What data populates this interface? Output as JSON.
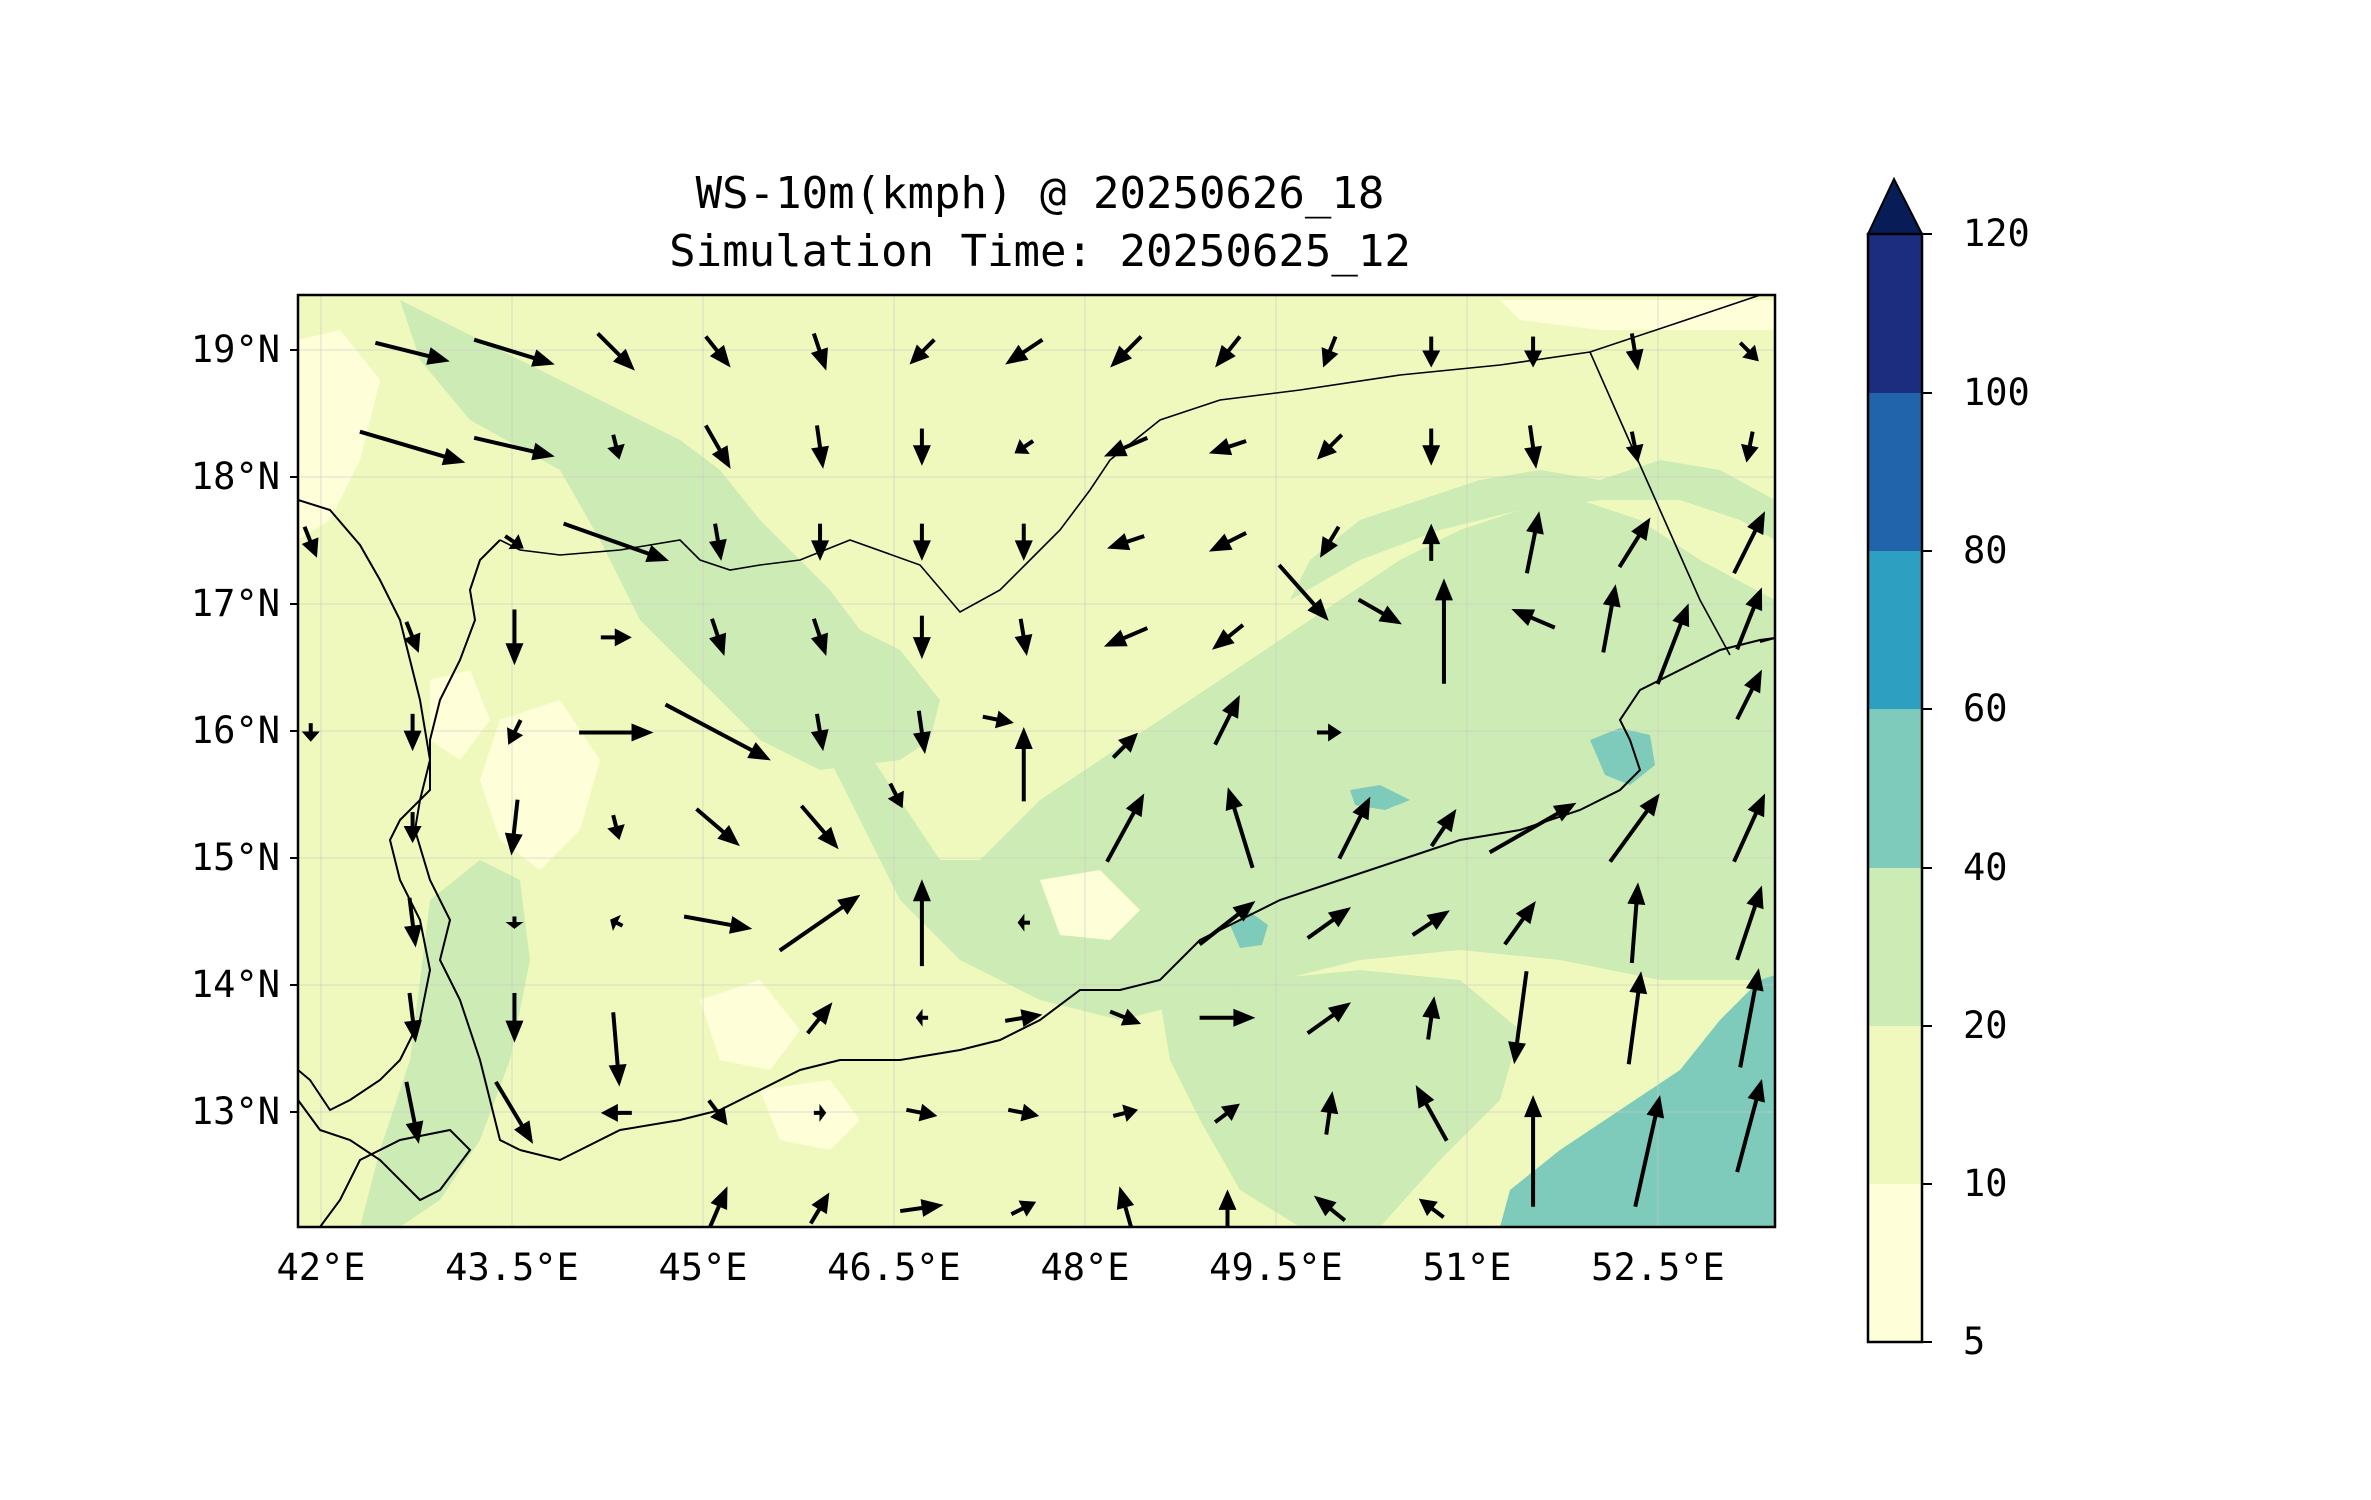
{
  "title": {
    "line1": "WS-10m(kmph) @ 20250626_18",
    "line2": "Simulation Time: 20250625_12"
  },
  "axes": {
    "lon_ticks": [
      "42°E",
      "43.5°E",
      "45°E",
      "46.5°E",
      "48°E",
      "49.5°E",
      "51°E",
      "52.5°E"
    ],
    "lat_ticks": [
      "19°N",
      "18°N",
      "17°N",
      "16°N",
      "15°N",
      "14°N",
      "13°N"
    ],
    "lon_range": [
      41.9,
      53.5
    ],
    "lat_range": [
      12.1,
      19.45
    ],
    "grid": true
  },
  "colorbar": {
    "labels": [
      "5",
      "10",
      "20",
      "40",
      "60",
      "80",
      "100",
      "120"
    ],
    "colors": [
      "#feffd9",
      "#f0f9bd",
      "#cdebb4",
      "#7ecbbb",
      "#2da0c2",
      "#2164ab",
      "#1c2d80",
      "#081d58"
    ],
    "extend": "max"
  },
  "chart_data": {
    "type": "map",
    "variable": "WS-10m(kmph)",
    "levels": [
      5,
      10,
      20,
      40,
      60,
      80,
      100,
      120
    ],
    "wind_vectors": [
      {
        "lon": 42.8,
        "lat": 19.0,
        "u": 24,
        "v": -6
      },
      {
        "lon": 43.6,
        "lat": 19.0,
        "u": 26,
        "v": -8
      },
      {
        "lon": 44.4,
        "lat": 19.0,
        "u": 12,
        "v": -12
      },
      {
        "lon": 45.2,
        "lat": 19.0,
        "u": 8,
        "v": -10
      },
      {
        "lon": 46.0,
        "lat": 19.0,
        "u": 4,
        "v": -12
      },
      {
        "lon": 46.8,
        "lat": 19.0,
        "u": -8,
        "v": -8
      },
      {
        "lon": 47.6,
        "lat": 19.0,
        "u": -12,
        "v": -8
      },
      {
        "lon": 48.4,
        "lat": 19.0,
        "u": -10,
        "v": -10
      },
      {
        "lon": 49.2,
        "lat": 19.0,
        "u": -8,
        "v": -10
      },
      {
        "lon": 50.0,
        "lat": 19.0,
        "u": -4,
        "v": -10
      },
      {
        "lon": 50.8,
        "lat": 19.0,
        "u": 0,
        "v": -10
      },
      {
        "lon": 51.6,
        "lat": 19.0,
        "u": 0,
        "v": -10
      },
      {
        "lon": 52.4,
        "lat": 19.0,
        "u": 2,
        "v": -12
      },
      {
        "lon": 53.3,
        "lat": 19.0,
        "u": 6,
        "v": -6
      },
      {
        "lon": 42.8,
        "lat": 18.25,
        "u": 34,
        "v": -10
      },
      {
        "lon": 43.6,
        "lat": 18.25,
        "u": 26,
        "v": -6
      },
      {
        "lon": 44.4,
        "lat": 18.25,
        "u": 2,
        "v": -8
      },
      {
        "lon": 45.2,
        "lat": 18.25,
        "u": 8,
        "v": -14
      },
      {
        "lon": 46.0,
        "lat": 18.25,
        "u": 2,
        "v": -14
      },
      {
        "lon": 46.8,
        "lat": 18.25,
        "u": 0,
        "v": -12
      },
      {
        "lon": 47.6,
        "lat": 18.25,
        "u": -6,
        "v": -4
      },
      {
        "lon": 48.4,
        "lat": 18.25,
        "u": -14,
        "v": -6
      },
      {
        "lon": 49.2,
        "lat": 18.25,
        "u": -12,
        "v": -4
      },
      {
        "lon": 50.0,
        "lat": 18.25,
        "u": -8,
        "v": -8
      },
      {
        "lon": 50.8,
        "lat": 18.25,
        "u": 0,
        "v": -12
      },
      {
        "lon": 51.6,
        "lat": 18.25,
        "u": 2,
        "v": -14
      },
      {
        "lon": 52.4,
        "lat": 18.25,
        "u": 2,
        "v": -10
      },
      {
        "lon": 53.3,
        "lat": 18.25,
        "u": -2,
        "v": -10
      },
      {
        "lon": 43.6,
        "lat": 17.5,
        "u": 6,
        "v": -4
      },
      {
        "lon": 44.4,
        "lat": 17.5,
        "u": 34,
        "v": -12
      },
      {
        "lon": 45.2,
        "lat": 17.5,
        "u": 2,
        "v": -12
      },
      {
        "lon": 46.0,
        "lat": 17.5,
        "u": 0,
        "v": -12
      },
      {
        "lon": 46.8,
        "lat": 17.5,
        "u": 0,
        "v": -12
      },
      {
        "lon": 47.6,
        "lat": 17.5,
        "u": 0,
        "v": -12
      },
      {
        "lon": 48.4,
        "lat": 17.5,
        "u": -12,
        "v": -4
      },
      {
        "lon": 49.2,
        "lat": 17.5,
        "u": -12,
        "v": -6
      },
      {
        "lon": 50.0,
        "lat": 17.5,
        "u": -6,
        "v": -10
      },
      {
        "lon": 50.8,
        "lat": 17.5,
        "u": 0,
        "v": 12
      },
      {
        "lon": 51.6,
        "lat": 17.5,
        "u": 4,
        "v": 20
      },
      {
        "lon": 52.4,
        "lat": 17.5,
        "u": 10,
        "v": 16
      },
      {
        "lon": 53.3,
        "lat": 17.5,
        "u": 10,
        "v": 20
      },
      {
        "lon": 42.0,
        "lat": 17.5,
        "u": 4,
        "v": -10
      },
      {
        "lon": 43.6,
        "lat": 16.75,
        "u": 0,
        "v": -18
      },
      {
        "lon": 44.4,
        "lat": 16.75,
        "u": 10,
        "v": 0
      },
      {
        "lon": 45.2,
        "lat": 16.75,
        "u": 4,
        "v": -12
      },
      {
        "lon": 46.0,
        "lat": 16.75,
        "u": 4,
        "v": -12
      },
      {
        "lon": 46.8,
        "lat": 16.75,
        "u": 0,
        "v": -14
      },
      {
        "lon": 47.6,
        "lat": 16.75,
        "u": 2,
        "v": -12
      },
      {
        "lon": 48.4,
        "lat": 16.75,
        "u": -14,
        "v": -6
      },
      {
        "lon": 49.2,
        "lat": 16.75,
        "u": -10,
        "v": -8
      },
      {
        "lon": 49.8,
        "lat": 17.1,
        "u": 16,
        "v": -18
      },
      {
        "lon": 50.4,
        "lat": 16.95,
        "u": 14,
        "v": -8
      },
      {
        "lon": 50.9,
        "lat": 16.8,
        "u": 0,
        "v": 34
      },
      {
        "lon": 51.6,
        "lat": 16.9,
        "u": -14,
        "v": 6
      },
      {
        "lon": 52.2,
        "lat": 16.9,
        "u": 4,
        "v": 22
      },
      {
        "lon": 53.3,
        "lat": 16.9,
        "u": 8,
        "v": 20
      },
      {
        "lon": 42.8,
        "lat": 16.75,
        "u": 4,
        "v": -10
      },
      {
        "lon": 42.0,
        "lat": 16.0,
        "u": 0,
        "v": -6
      },
      {
        "lon": 42.8,
        "lat": 16.0,
        "u": 0,
        "v": -12
      },
      {
        "lon": 43.6,
        "lat": 16.0,
        "u": -4,
        "v": -8
      },
      {
        "lon": 44.4,
        "lat": 16.0,
        "u": 24,
        "v": 0
      },
      {
        "lon": 45.2,
        "lat": 16.0,
        "u": 34,
        "v": -18
      },
      {
        "lon": 46.0,
        "lat": 16.0,
        "u": 2,
        "v": -12
      },
      {
        "lon": 46.8,
        "lat": 16.0,
        "u": 2,
        "v": -14
      },
      {
        "lon": 47.4,
        "lat": 16.1,
        "u": 10,
        "v": -2
      },
      {
        "lon": 47.6,
        "lat": 15.75,
        "u": 0,
        "v": 24
      },
      {
        "lon": 48.4,
        "lat": 15.9,
        "u": 8,
        "v": 8
      },
      {
        "lon": 49.2,
        "lat": 16.1,
        "u": 8,
        "v": 16
      },
      {
        "lon": 50.0,
        "lat": 16.0,
        "u": 8,
        "v": 0
      },
      {
        "lon": 53.3,
        "lat": 16.3,
        "u": 8,
        "v": 16
      },
      {
        "lon": 52.7,
        "lat": 16.7,
        "u": 10,
        "v": 26
      },
      {
        "lon": 42.8,
        "lat": 15.25,
        "u": 0,
        "v": -10
      },
      {
        "lon": 43.6,
        "lat": 15.25,
        "u": -2,
        "v": -18
      },
      {
        "lon": 44.4,
        "lat": 15.25,
        "u": 2,
        "v": -8
      },
      {
        "lon": 45.2,
        "lat": 15.25,
        "u": 14,
        "v": -12
      },
      {
        "lon": 46.0,
        "lat": 15.25,
        "u": 12,
        "v": -14
      },
      {
        "lon": 46.6,
        "lat": 15.5,
        "u": 4,
        "v": -8
      },
      {
        "lon": 48.4,
        "lat": 15.25,
        "u": 12,
        "v": 22
      },
      {
        "lon": 49.3,
        "lat": 15.25,
        "u": -8,
        "v": 26
      },
      {
        "lon": 50.2,
        "lat": 15.25,
        "u": 10,
        "v": 20
      },
      {
        "lon": 50.9,
        "lat": 15.25,
        "u": 8,
        "v": 12
      },
      {
        "lon": 51.6,
        "lat": 15.25,
        "u": 28,
        "v": 16
      },
      {
        "lon": 52.4,
        "lat": 15.25,
        "u": 16,
        "v": 22
      },
      {
        "lon": 53.3,
        "lat": 15.25,
        "u": 10,
        "v": 22
      },
      {
        "lon": 42.8,
        "lat": 14.5,
        "u": 2,
        "v": -16
      },
      {
        "lon": 43.6,
        "lat": 14.5,
        "u": 0,
        "v": -4
      },
      {
        "lon": 44.4,
        "lat": 14.5,
        "u": -4,
        "v": 2
      },
      {
        "lon": 45.2,
        "lat": 14.5,
        "u": 22,
        "v": -4
      },
      {
        "lon": 46.0,
        "lat": 14.5,
        "u": 26,
        "v": 18
      },
      {
        "lon": 46.8,
        "lat": 14.5,
        "u": 0,
        "v": 28
      },
      {
        "lon": 47.6,
        "lat": 14.5,
        "u": -4,
        "v": 0
      },
      {
        "lon": 49.2,
        "lat": 14.5,
        "u": 18,
        "v": 14
      },
      {
        "lon": 50.0,
        "lat": 14.5,
        "u": 14,
        "v": 10
      },
      {
        "lon": 50.8,
        "lat": 14.5,
        "u": 12,
        "v": 8
      },
      {
        "lon": 51.5,
        "lat": 14.5,
        "u": 10,
        "v": 14
      },
      {
        "lon": 52.4,
        "lat": 14.5,
        "u": 2,
        "v": 26
      },
      {
        "lon": 53.3,
        "lat": 14.5,
        "u": 8,
        "v": 24
      },
      {
        "lon": 42.8,
        "lat": 13.75,
        "u": 2,
        "v": -16
      },
      {
        "lon": 43.6,
        "lat": 13.75,
        "u": 0,
        "v": -16
      },
      {
        "lon": 44.4,
        "lat": 13.5,
        "u": 2,
        "v": -24
      },
      {
        "lon": 46.0,
        "lat": 13.75,
        "u": 8,
        "v": 10
      },
      {
        "lon": 46.8,
        "lat": 13.75,
        "u": -4,
        "v": 0
      },
      {
        "lon": 47.6,
        "lat": 13.75,
        "u": 12,
        "v": 2
      },
      {
        "lon": 48.4,
        "lat": 13.75,
        "u": 10,
        "v": -4
      },
      {
        "lon": 49.2,
        "lat": 13.75,
        "u": 18,
        "v": 0
      },
      {
        "lon": 50.0,
        "lat": 13.75,
        "u": 14,
        "v": 10
      },
      {
        "lon": 50.8,
        "lat": 13.75,
        "u": 2,
        "v": 14
      },
      {
        "lon": 51.5,
        "lat": 13.75,
        "u": -4,
        "v": -30
      },
      {
        "lon": 52.4,
        "lat": 13.75,
        "u": 4,
        "v": 30
      },
      {
        "lon": 53.3,
        "lat": 13.75,
        "u": 6,
        "v": 32
      },
      {
        "lon": 42.8,
        "lat": 13.0,
        "u": 4,
        "v": -20
      },
      {
        "lon": 43.6,
        "lat": 13.0,
        "u": 12,
        "v": -20
      },
      {
        "lon": 44.4,
        "lat": 13.0,
        "u": -10,
        "v": 0
      },
      {
        "lon": 45.2,
        "lat": 13.0,
        "u": 6,
        "v": -8
      },
      {
        "lon": 46.0,
        "lat": 13.0,
        "u": 4,
        "v": 0
      },
      {
        "lon": 46.8,
        "lat": 13.0,
        "u": 10,
        "v": -2
      },
      {
        "lon": 47.6,
        "lat": 13.0,
        "u": 10,
        "v": -2
      },
      {
        "lon": 48.4,
        "lat": 13.0,
        "u": 8,
        "v": 2
      },
      {
        "lon": 49.2,
        "lat": 13.0,
        "u": 8,
        "v": 6
      },
      {
        "lon": 50.0,
        "lat": 13.0,
        "u": 2,
        "v": 14
      },
      {
        "lon": 50.8,
        "lat": 13.0,
        "u": -10,
        "v": 18
      },
      {
        "lon": 51.6,
        "lat": 12.7,
        "u": 0,
        "v": 36
      },
      {
        "lon": 52.5,
        "lat": 12.7,
        "u": 8,
        "v": 36
      },
      {
        "lon": 53.3,
        "lat": 12.9,
        "u": 8,
        "v": 30
      },
      {
        "lon": 45.2,
        "lat": 12.25,
        "u": 6,
        "v": 14
      },
      {
        "lon": 46.0,
        "lat": 12.25,
        "u": 6,
        "v": 10
      },
      {
        "lon": 46.8,
        "lat": 12.25,
        "u": 14,
        "v": 2
      },
      {
        "lon": 47.6,
        "lat": 12.25,
        "u": 8,
        "v": 4
      },
      {
        "lon": 48.4,
        "lat": 12.25,
        "u": -4,
        "v": 14
      },
      {
        "lon": 49.2,
        "lat": 12.25,
        "u": 0,
        "v": 12
      },
      {
        "lon": 50.0,
        "lat": 12.25,
        "u": -10,
        "v": 8
      },
      {
        "lon": 50.8,
        "lat": 12.25,
        "u": -8,
        "v": 6
      }
    ]
  }
}
